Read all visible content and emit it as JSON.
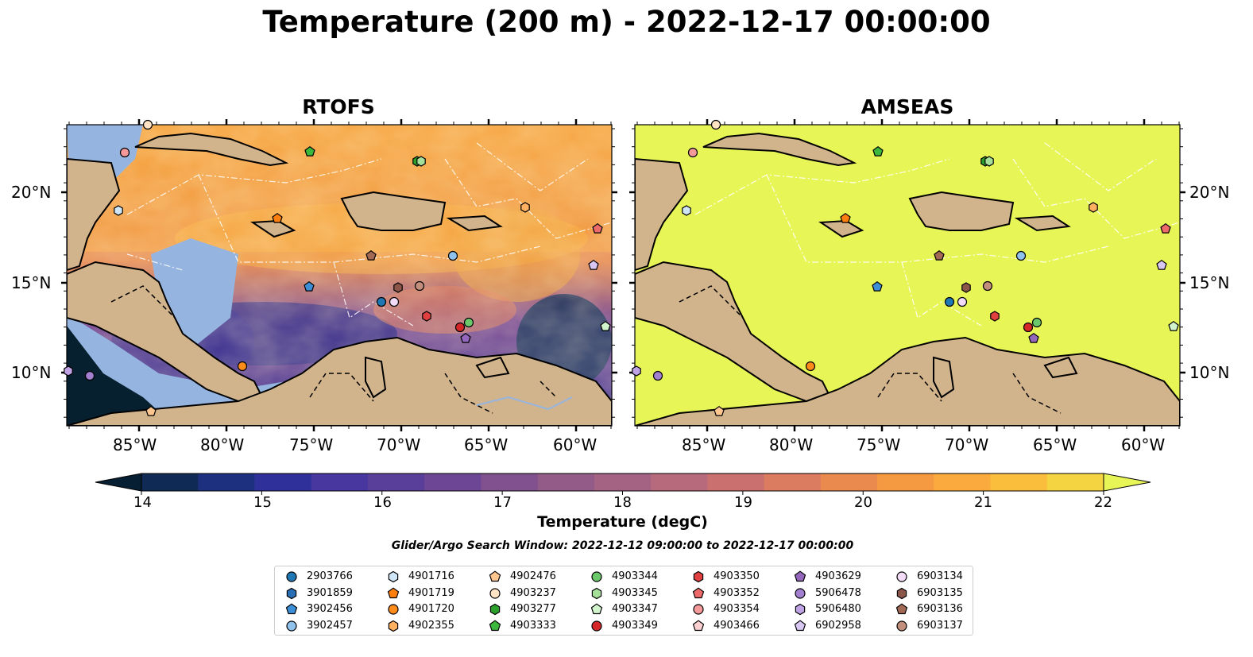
{
  "title": "Temperature (200 m) - 2022-12-17 00:00:00",
  "panels": [
    {
      "title": "RTOFS"
    },
    {
      "title": "AMSEAS"
    }
  ],
  "lon_ticks": [
    "85°W",
    "80°W",
    "75°W",
    "70°W",
    "65°W",
    "60°W"
  ],
  "lat_ticks": [
    "20°N",
    "15°N",
    "10°N"
  ],
  "colorbar": {
    "ticks": [
      "14",
      "15",
      "16",
      "17",
      "18",
      "19",
      "20",
      "21",
      "22"
    ],
    "label": "Temperature (degC)",
    "colors": [
      "#071f33",
      "#0f2b55",
      "#1d3080",
      "#30309a",
      "#47379f",
      "#5a3f9a",
      "#6d4795",
      "#80518e",
      "#935b87",
      "#a56383",
      "#b86a7d",
      "#ca7170",
      "#db7b5f",
      "#ea8a4f",
      "#f69a42",
      "#fbab3e",
      "#fbbd3c",
      "#f4d440",
      "#e8f556"
    ]
  },
  "search_window": "Glider/Argo Search Window: 2022-12-12 09:00:00 to 2022-12-17 00:00:00",
  "legend": [
    {
      "id": "2903766",
      "shape": "circle",
      "color": "#1f77b4"
    },
    {
      "id": "3901859",
      "shape": "hexagon",
      "color": "#2a6fb5"
    },
    {
      "id": "3902456",
      "shape": "pentagon",
      "color": "#3c8fd6"
    },
    {
      "id": "3902457",
      "shape": "circle",
      "color": "#8fc3ee"
    },
    {
      "id": "4901716",
      "shape": "hexagon",
      "color": "#cfe6f8"
    },
    {
      "id": "4901719",
      "shape": "pentagon",
      "color": "#ff7f0e"
    },
    {
      "id": "4901720",
      "shape": "circle",
      "color": "#ff8c1a"
    },
    {
      "id": "4902355",
      "shape": "hexagon",
      "color": "#ffb060"
    },
    {
      "id": "4902476",
      "shape": "pentagon",
      "color": "#ffc690"
    },
    {
      "id": "4903237",
      "shape": "circle",
      "color": "#ffe3c4"
    },
    {
      "id": "4903277",
      "shape": "hexagon",
      "color": "#2ca02c"
    },
    {
      "id": "4903333",
      "shape": "pentagon",
      "color": "#3cb83c"
    },
    {
      "id": "4903344",
      "shape": "circle",
      "color": "#6bc96b"
    },
    {
      "id": "4903345",
      "shape": "hexagon",
      "color": "#a5e09a"
    },
    {
      "id": "4903347",
      "shape": "pentagon",
      "color": "#d2f4cd"
    },
    {
      "id": "4903349",
      "shape": "circle",
      "color": "#d62728"
    },
    {
      "id": "4903350",
      "shape": "hexagon",
      "color": "#e04040"
    },
    {
      "id": "4903352",
      "shape": "pentagon",
      "color": "#ee6a6a"
    },
    {
      "id": "4903354",
      "shape": "circle",
      "color": "#f59a9a"
    },
    {
      "id": "4903466",
      "shape": "pentagon",
      "color": "#fcd0d0"
    },
    {
      "id": "4903629",
      "shape": "pentagon",
      "color": "#9467bd"
    },
    {
      "id": "5906478",
      "shape": "circle",
      "color": "#a37fd0"
    },
    {
      "id": "5906480",
      "shape": "hexagon",
      "color": "#c0a3e4"
    },
    {
      "id": "6902958",
      "shape": "pentagon",
      "color": "#d8c6f3"
    },
    {
      "id": "6903134",
      "shape": "circle",
      "color": "#f2dcf8"
    },
    {
      "id": "6903135",
      "shape": "hexagon",
      "color": "#8c564b"
    },
    {
      "id": "6903136",
      "shape": "pentagon",
      "color": "#a26a55"
    },
    {
      "id": "6903137",
      "shape": "circle",
      "color": "#c28f7c"
    }
  ]
}
